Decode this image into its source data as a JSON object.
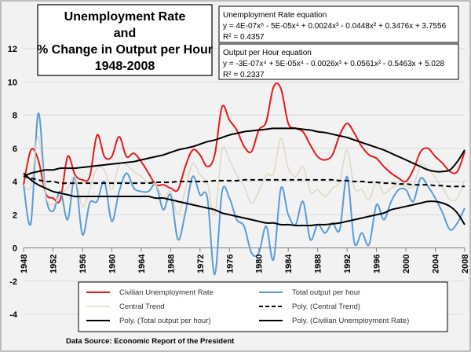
{
  "chart_data": {
    "type": "line",
    "title": [
      "Unemployment Rate",
      "and",
      "% Change in Output per Hour",
      "1948-2008"
    ],
    "xlabel": "",
    "ylabel": "",
    "ylim": [
      -4,
      12
    ],
    "yticks": [
      -4,
      -2,
      0,
      2,
      4,
      6,
      8,
      10,
      12
    ],
    "xticks": [
      "1948",
      "1952",
      "1956",
      "1960",
      "1964",
      "1968",
      "1972",
      "1976",
      "1980",
      "1984",
      "1988",
      "1992",
      "1996",
      "2000",
      "2004",
      "2008"
    ],
    "x": [
      1948,
      1949,
      1950,
      1951,
      1952,
      1953,
      1954,
      1955,
      1956,
      1957,
      1958,
      1959,
      1960,
      1961,
      1962,
      1963,
      1964,
      1965,
      1966,
      1967,
      1968,
      1969,
      1970,
      1971,
      1972,
      1973,
      1974,
      1975,
      1976,
      1977,
      1978,
      1979,
      1980,
      1981,
      1982,
      1983,
      1984,
      1985,
      1986,
      1987,
      1988,
      1989,
      1990,
      1991,
      1992,
      1993,
      1994,
      1995,
      1996,
      1997,
      1998,
      1999,
      2000,
      2001,
      2002,
      2003,
      2004,
      2005,
      2006,
      2007,
      2008
    ],
    "series": [
      {
        "name": "Civilian Unemployment Rate",
        "color": "#e8181e",
        "values": [
          3.8,
          5.9,
          5.3,
          3.3,
          3.0,
          2.9,
          5.5,
          4.4,
          4.1,
          4.3,
          6.8,
          5.5,
          5.5,
          6.7,
          5.5,
          5.7,
          5.2,
          4.5,
          3.8,
          3.8,
          3.6,
          3.5,
          4.9,
          5.9,
          5.6,
          4.9,
          5.6,
          8.5,
          7.7,
          7.1,
          6.1,
          5.8,
          7.1,
          7.6,
          9.7,
          9.6,
          7.5,
          7.2,
          7.0,
          6.2,
          5.5,
          5.3,
          5.6,
          6.8,
          7.5,
          6.9,
          6.1,
          5.6,
          5.4,
          4.9,
          4.5,
          4.2,
          4.0,
          4.7,
          5.8,
          6.0,
          5.5,
          5.1,
          4.6,
          4.6,
          5.8
        ]
      },
      {
        "name": "Total output per hour",
        "color": "#5b9bd5",
        "values": [
          3.8,
          1.5,
          8.1,
          3.2,
          2.2,
          3.4,
          1.7,
          4.3,
          0.8,
          2.7,
          2.8,
          4.0,
          1.6,
          3.4,
          4.5,
          3.6,
          3.4,
          3.4,
          3.8,
          2.3,
          3.2,
          0.5,
          2.1,
          4.3,
          3.2,
          3.0,
          -1.6,
          3.4,
          3.0,
          1.7,
          1.3,
          -0.3,
          -0.3,
          1.3,
          -0.7,
          3.6,
          2.0,
          1.4,
          2.8,
          0.5,
          1.4,
          0.9,
          1.5,
          1.1,
          4.3,
          0.3,
          0.9,
          0.2,
          2.6,
          1.7,
          2.8,
          3.5,
          3.5,
          2.8,
          4.2,
          3.7,
          3.0,
          2.1,
          1.1,
          1.5,
          2.4
        ]
      },
      {
        "name": "Central Trend",
        "color": "#ddd9c4",
        "values": [
          3.8,
          3.7,
          6.7,
          3.2,
          2.6,
          3.2,
          3.6,
          4.3,
          2.5,
          3.5,
          4.8,
          4.7,
          3.5,
          5.0,
          5.0,
          4.6,
          4.3,
          3.9,
          3.8,
          3.0,
          3.4,
          2.0,
          3.5,
          5.1,
          4.4,
          3.9,
          2.0,
          5.9,
          5.3,
          4.4,
          3.7,
          2.7,
          3.4,
          4.4,
          4.5,
          6.6,
          4.8,
          4.3,
          4.9,
          3.4,
          3.5,
          3.1,
          3.6,
          4.0,
          5.9,
          3.6,
          3.5,
          2.9,
          4.0,
          3.3,
          3.6,
          3.8,
          3.7,
          3.7,
          5.0,
          4.8,
          4.2,
          3.6,
          2.9,
          3.0,
          4.1
        ]
      },
      {
        "name": "Poly. (Central Trend)",
        "color": "#000000",
        "dash": true,
        "values": [
          4.3,
          4.2,
          4.1,
          4.0,
          4.0,
          3.9,
          3.9,
          3.9,
          3.9,
          3.9,
          3.9,
          3.9,
          3.9,
          3.9,
          3.9,
          3.9,
          3.9,
          3.9,
          3.95,
          3.95,
          3.95,
          4.0,
          4.0,
          4.0,
          4.0,
          4.0,
          4.05,
          4.05,
          4.05,
          4.05,
          4.1,
          4.1,
          4.1,
          4.1,
          4.1,
          4.1,
          4.1,
          4.1,
          4.1,
          4.1,
          4.1,
          4.1,
          4.1,
          4.05,
          4.05,
          4.0,
          4.0,
          3.95,
          3.95,
          3.9,
          3.9,
          3.85,
          3.85,
          3.8,
          3.8,
          3.8,
          3.75,
          3.75,
          3.7,
          3.7,
          3.7
        ]
      },
      {
        "name": "Poly. (Total output per hour)",
        "color": "#000000",
        "values": [
          4.5,
          4.1,
          3.8,
          3.6,
          3.4,
          3.3,
          3.2,
          3.1,
          3.1,
          3.1,
          3.1,
          3.1,
          3.1,
          3.1,
          3.1,
          3.1,
          3.1,
          3.1,
          3.0,
          3.0,
          2.9,
          2.8,
          2.7,
          2.6,
          2.5,
          2.4,
          2.3,
          2.1,
          2.0,
          1.9,
          1.8,
          1.7,
          1.6,
          1.5,
          1.5,
          1.4,
          1.4,
          1.35,
          1.35,
          1.35,
          1.4,
          1.4,
          1.45,
          1.5,
          1.6,
          1.7,
          1.8,
          1.9,
          2.0,
          2.1,
          2.3,
          2.4,
          2.5,
          2.6,
          2.7,
          2.8,
          2.8,
          2.7,
          2.5,
          2.1,
          1.4
        ]
      },
      {
        "name": "Poly. (Civilian Unemployment Rate)",
        "color": "#000000",
        "values": [
          4.3,
          4.5,
          4.6,
          4.7,
          4.7,
          4.8,
          4.8,
          4.8,
          4.85,
          4.9,
          4.95,
          5.0,
          5.05,
          5.1,
          5.15,
          5.2,
          5.3,
          5.4,
          5.5,
          5.6,
          5.75,
          5.9,
          6.0,
          6.1,
          6.25,
          6.4,
          6.5,
          6.65,
          6.8,
          6.9,
          7.0,
          7.05,
          7.1,
          7.15,
          7.2,
          7.2,
          7.2,
          7.2,
          7.15,
          7.1,
          7.0,
          6.95,
          6.85,
          6.75,
          6.65,
          6.5,
          6.35,
          6.2,
          6.05,
          5.9,
          5.7,
          5.5,
          5.3,
          5.1,
          4.9,
          4.7,
          4.6,
          4.6,
          4.7,
          5.2,
          5.9
        ]
      }
    ],
    "legend": [
      "Civilian Unemployment Rate",
      "Total output per hour",
      "Central Trend",
      "Poly. (Central Trend)",
      "Poly. (Total output per hour)",
      "Poly. (Civilian Unemployment Rate)"
    ],
    "legend_position": "bottom",
    "annotations": {
      "unemployment_equation": [
        "Unemployment Rate equation",
        "y = 4E-07x⁶ - 5E-05x⁴ + 0.0024x³ - 0.0448x² + 0.3476x + 3.7556",
        "R² = 0.4357"
      ],
      "output_equation": [
        "Output per Hour equation",
        "y = -3E-07x⁴ + 5E-05x⁴ - 0.0026x³ + 0.0561x² - 0.5463x + 5.028",
        "R² = 0.2337"
      ]
    },
    "source": "Data Source:  Economic Report of the President",
    "grid": true
  }
}
